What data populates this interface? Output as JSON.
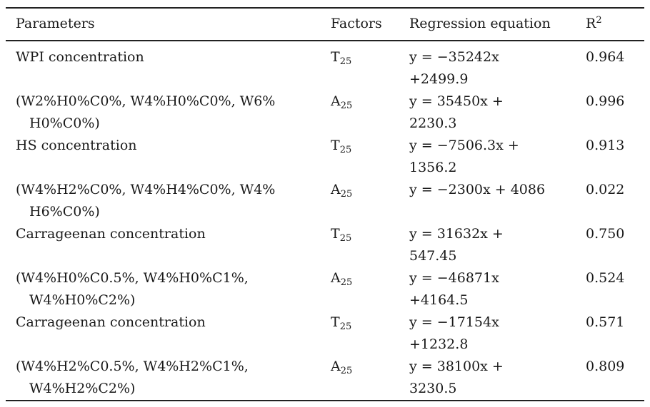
{
  "page": {
    "background_color": "#ffffff",
    "text_color": "#1a1a1a",
    "rule_color": "#222222"
  },
  "table": {
    "header": {
      "parameters": "Parameters",
      "factors": "Factors",
      "equation": "Regression equation",
      "r2_base": "R",
      "r2_sup": "2"
    },
    "rows": [
      {
        "param_line1": "WPI concentration",
        "param_line2": "",
        "factor_base": "T",
        "factor_sub": "25",
        "eq_line1": "y = −35242x",
        "eq_line2": "+2499.9",
        "r2": "0.964"
      },
      {
        "param_line1": "(W2%H0%C0%, W4%H0%C0%, W6%",
        "param_line2": "H0%C0%)",
        "factor_base": "A",
        "factor_sub": "25",
        "eq_line1": "y = 35450x +",
        "eq_line2": "2230.3",
        "r2": "0.996"
      },
      {
        "param_line1": "HS concentration",
        "param_line2": "",
        "factor_base": "T",
        "factor_sub": "25",
        "eq_line1": "y = −7506.3x +",
        "eq_line2": "1356.2",
        "r2": "0.913"
      },
      {
        "param_line1": "(W4%H2%C0%, W4%H4%C0%, W4%",
        "param_line2": "H6%C0%)",
        "factor_base": "A",
        "factor_sub": "25",
        "eq_line1": "y = −2300x + 4086",
        "eq_line2": "",
        "r2": "0.022"
      },
      {
        "param_line1": "Carrageenan concentration",
        "param_line2": "",
        "factor_base": "T",
        "factor_sub": "25",
        "eq_line1": "y = 31632x +",
        "eq_line2": "547.45",
        "r2": "0.750"
      },
      {
        "param_line1": "(W4%H0%C0.5%, W4%H0%C1%,",
        "param_line2": "W4%H0%C2%)",
        "factor_base": "A",
        "factor_sub": "25",
        "eq_line1": "y = −46871x",
        "eq_line2": "+4164.5",
        "r2": "0.524"
      },
      {
        "param_line1": "Carrageenan concentration",
        "param_line2": "",
        "factor_base": "T",
        "factor_sub": "25",
        "eq_line1": "y = −17154x",
        "eq_line2": "+1232.8",
        "r2": "0.571"
      },
      {
        "param_line1": "(W4%H2%C0.5%, W4%H2%C1%,",
        "param_line2": "W4%H2%C2%)",
        "factor_base": "A",
        "factor_sub": "25",
        "eq_line1": "y = 38100x +",
        "eq_line2": "3230.5",
        "r2": "0.809"
      }
    ]
  }
}
